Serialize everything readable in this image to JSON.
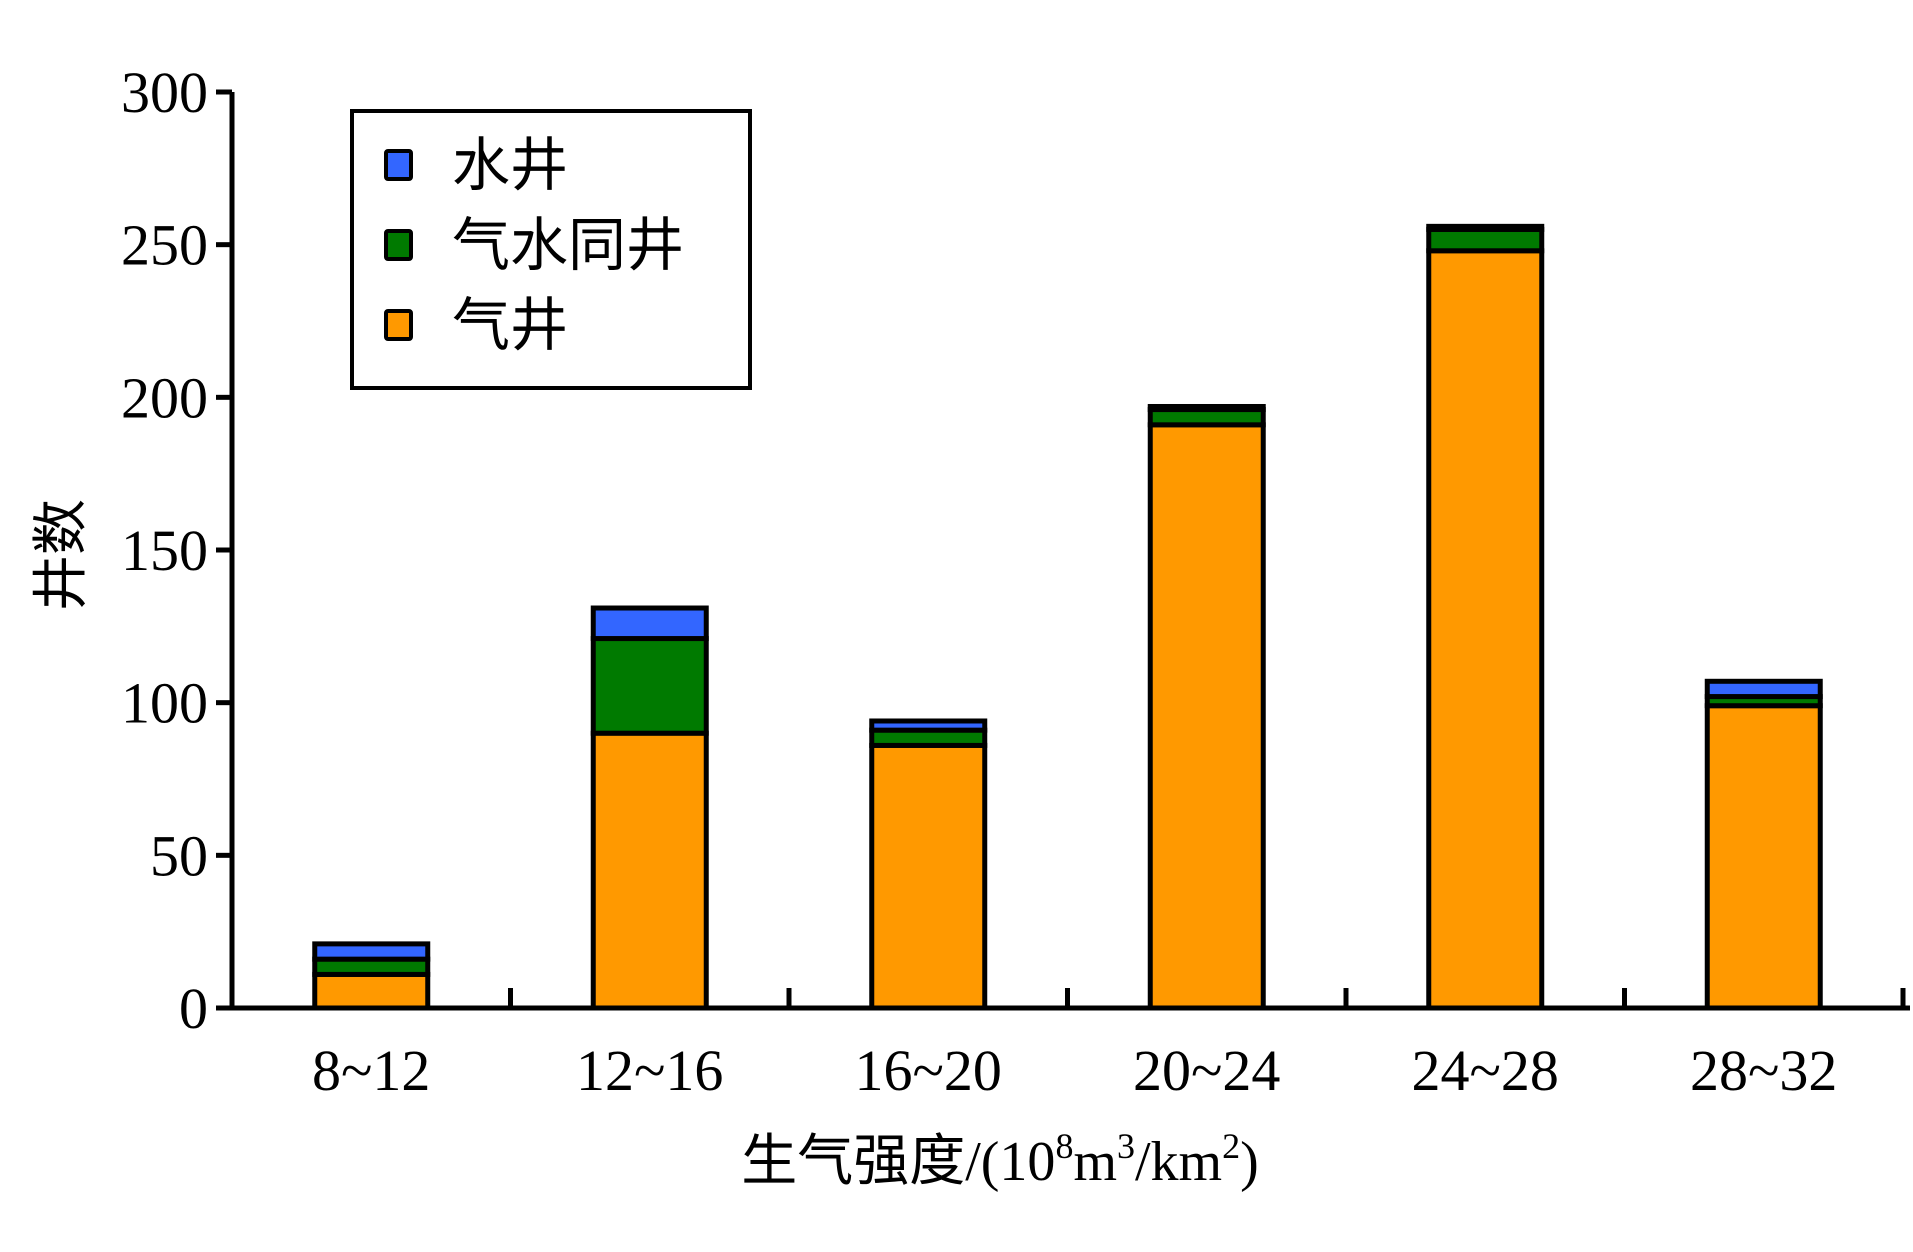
{
  "chart_data": {
    "type": "bar",
    "stacked": true,
    "categories": [
      "8~12",
      "12~16",
      "16~20",
      "20~24",
      "24~28",
      "28~32"
    ],
    "series": [
      {
        "name": "气井",
        "color": "#ff9900",
        "values": [
          11,
          90,
          86,
          191,
          248,
          99
        ]
      },
      {
        "name": "气水同井",
        "color": "#007a00",
        "values": [
          5,
          31,
          5,
          5,
          7,
          3
        ]
      },
      {
        "name": "水井",
        "color": "#3366ff",
        "values": [
          5,
          10,
          3,
          1,
          1,
          5
        ]
      }
    ],
    "xlabel_cn": "生气强度",
    "xlabel_unit": {
      "prefix": "/(10",
      "sup1": "8",
      "mid1": "m",
      "sup2": "3",
      "mid2": "/km",
      "sup3": "2",
      "suffix": ")"
    },
    "ylabel": "井数",
    "ylim": [
      0,
      300
    ],
    "yticks": [
      "0",
      "50",
      "100",
      "150",
      "200",
      "250",
      "300"
    ],
    "ytick_values": [
      0,
      50,
      100,
      150,
      200,
      250,
      300
    ],
    "legend": {
      "position": "top-left",
      "order": [
        "水井",
        "气水同井",
        "气井"
      ]
    },
    "grid": false
  }
}
